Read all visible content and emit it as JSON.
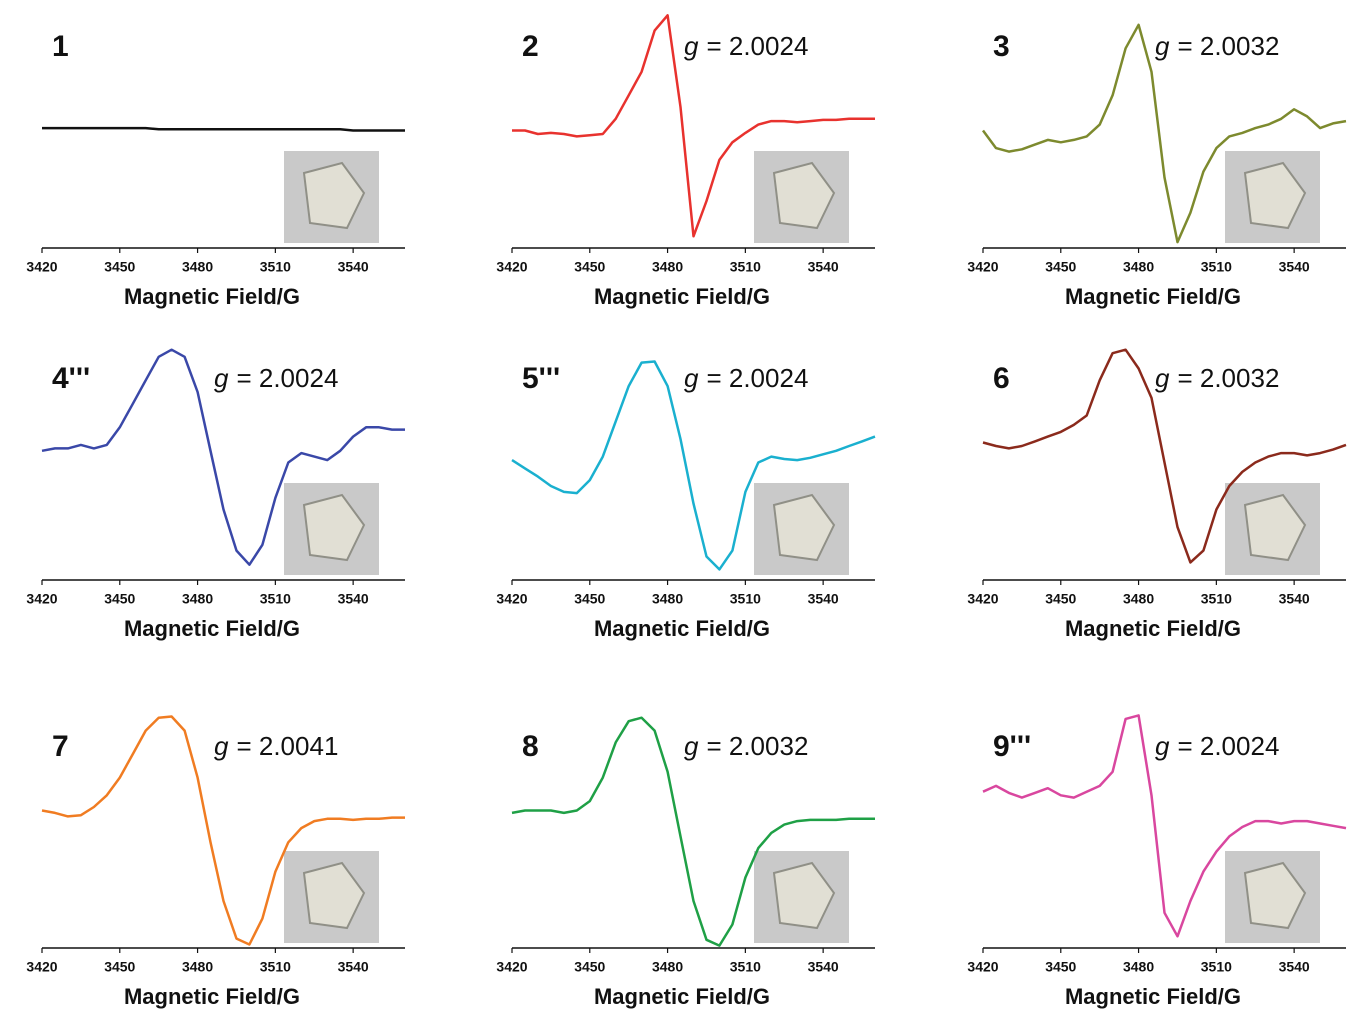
{
  "chart_data": [
    {
      "type": "line",
      "label": "1",
      "annotation": null,
      "xlabel": "Magnetic Field/G",
      "color": "#111111",
      "x": [
        3420,
        3425,
        3430,
        3435,
        3440,
        3445,
        3450,
        3455,
        3460,
        3465,
        3470,
        3475,
        3480,
        3485,
        3490,
        3495,
        3500,
        3505,
        3510,
        3515,
        3520,
        3525,
        3530,
        3535,
        3540,
        3545,
        3550,
        3555,
        3560
      ],
      "values": [
        0.02,
        0.02,
        0.02,
        0.02,
        0.02,
        0.02,
        0.02,
        0.02,
        0.02,
        0.01,
        0.01,
        0.01,
        0.01,
        0.01,
        0.01,
        0.01,
        0.01,
        0.01,
        0.01,
        0.01,
        0.01,
        0.01,
        0.01,
        0.01,
        0.0,
        0.0,
        0.0,
        0.0,
        0.0
      ],
      "xlim": [
        3420,
        3560
      ],
      "xticks": [
        3420,
        3450,
        3480,
        3510,
        3540
      ],
      "ylim": [
        -1,
        1
      ]
    },
    {
      "type": "line",
      "label": "2",
      "annotation": {
        "symbol": "g",
        "value": "= 2.0024"
      },
      "xlabel": "Magnetic Field/G",
      "color": "#e8322e",
      "x": [
        3420,
        3425,
        3430,
        3435,
        3440,
        3445,
        3450,
        3455,
        3460,
        3465,
        3470,
        3475,
        3480,
        3485,
        3490,
        3495,
        3500,
        3505,
        3510,
        3515,
        3520,
        3525,
        3530,
        3535,
        3540,
        3545,
        3550,
        3555,
        3560
      ],
      "values": [
        0.0,
        0.0,
        -0.03,
        -0.02,
        -0.03,
        -0.05,
        -0.04,
        -0.03,
        0.1,
        0.3,
        0.5,
        0.85,
        0.98,
        0.2,
        -0.9,
        -0.6,
        -0.25,
        -0.1,
        -0.02,
        0.05,
        0.08,
        0.08,
        0.07,
        0.08,
        0.09,
        0.09,
        0.1,
        0.1,
        0.1
      ],
      "xlim": [
        3420,
        3560
      ],
      "xticks": [
        3420,
        3450,
        3480,
        3510,
        3540
      ],
      "ylim": [
        -1,
        1
      ]
    },
    {
      "type": "line",
      "label": "3",
      "annotation": {
        "symbol": "g",
        "value": "= 2.0032"
      },
      "xlabel": "Magnetic Field/G",
      "color": "#7d8a2e",
      "x": [
        3420,
        3425,
        3430,
        3435,
        3440,
        3445,
        3450,
        3455,
        3460,
        3465,
        3470,
        3475,
        3480,
        3485,
        3490,
        3495,
        3500,
        3505,
        3510,
        3515,
        3520,
        3525,
        3530,
        3535,
        3540,
        3545,
        3550,
        3555,
        3560
      ],
      "values": [
        0.0,
        -0.15,
        -0.18,
        -0.16,
        -0.12,
        -0.08,
        -0.1,
        -0.08,
        -0.05,
        0.05,
        0.3,
        0.7,
        0.9,
        0.5,
        -0.4,
        -0.95,
        -0.7,
        -0.35,
        -0.15,
        -0.05,
        -0.02,
        0.02,
        0.05,
        0.1,
        0.18,
        0.12,
        0.02,
        0.06,
        0.08
      ],
      "xlim": [
        3420,
        3560
      ],
      "xticks": [
        3420,
        3450,
        3480,
        3510,
        3540
      ],
      "ylim": [
        -1,
        1
      ]
    },
    {
      "type": "line",
      "label": "4'''",
      "annotation": {
        "symbol": "g",
        "value": "= 2.0024"
      },
      "xlabel": "Magnetic Field/G",
      "color": "#3a48a8",
      "x": [
        3420,
        3425,
        3430,
        3435,
        3440,
        3445,
        3450,
        3455,
        3460,
        3465,
        3470,
        3475,
        3480,
        3485,
        3490,
        3495,
        3500,
        3505,
        3510,
        3515,
        3520,
        3525,
        3530,
        3535,
        3540,
        3545,
        3550,
        3555,
        3560
      ],
      "values": [
        0.1,
        0.12,
        0.12,
        0.15,
        0.12,
        0.15,
        0.3,
        0.5,
        0.7,
        0.9,
        0.96,
        0.9,
        0.6,
        0.1,
        -0.4,
        -0.75,
        -0.87,
        -0.7,
        -0.3,
        0.0,
        0.08,
        0.05,
        0.02,
        0.1,
        0.22,
        0.3,
        0.3,
        0.28,
        0.28
      ],
      "xlim": [
        3420,
        3560
      ],
      "xticks": [
        3420,
        3450,
        3480,
        3510,
        3540
      ],
      "ylim": [
        -1,
        1
      ]
    },
    {
      "type": "line",
      "label": "5'''",
      "annotation": {
        "symbol": "g",
        "value": "= 2.0024"
      },
      "xlabel": "Magnetic Field/G",
      "color": "#1ab0cf",
      "x": [
        3420,
        3425,
        3430,
        3435,
        3440,
        3445,
        3450,
        3455,
        3460,
        3465,
        3470,
        3475,
        3480,
        3485,
        3490,
        3495,
        3500,
        3505,
        3510,
        3515,
        3520,
        3525,
        3530,
        3535,
        3540,
        3545,
        3550,
        3555,
        3560
      ],
      "values": [
        0.02,
        -0.05,
        -0.12,
        -0.2,
        -0.25,
        -0.26,
        -0.15,
        0.05,
        0.35,
        0.65,
        0.85,
        0.86,
        0.65,
        0.2,
        -0.35,
        -0.8,
        -0.91,
        -0.75,
        -0.25,
        0.0,
        0.05,
        0.03,
        0.02,
        0.04,
        0.07,
        0.1,
        0.14,
        0.18,
        0.22
      ],
      "xlim": [
        3420,
        3560
      ],
      "xticks": [
        3420,
        3450,
        3480,
        3510,
        3540
      ],
      "ylim": [
        -1,
        1
      ]
    },
    {
      "type": "line",
      "label": "6",
      "annotation": {
        "symbol": "g",
        "value": "= 2.0032"
      },
      "xlabel": "Magnetic Field/G",
      "color": "#8b2a1c",
      "x": [
        3420,
        3425,
        3430,
        3435,
        3440,
        3445,
        3450,
        3455,
        3460,
        3465,
        3470,
        3475,
        3480,
        3485,
        3490,
        3495,
        3500,
        3505,
        3510,
        3515,
        3520,
        3525,
        3530,
        3535,
        3540,
        3545,
        3550,
        3555,
        3560
      ],
      "values": [
        0.17,
        0.14,
        0.12,
        0.14,
        0.18,
        0.22,
        0.26,
        0.32,
        0.4,
        0.7,
        0.93,
        0.96,
        0.8,
        0.55,
        0.0,
        -0.55,
        -0.85,
        -0.75,
        -0.4,
        -0.2,
        -0.08,
        0.0,
        0.05,
        0.08,
        0.08,
        0.06,
        0.08,
        0.11,
        0.15
      ],
      "xlim": [
        3420,
        3560
      ],
      "xticks": [
        3420,
        3450,
        3480,
        3510,
        3540
      ],
      "ylim": [
        -1,
        1
      ]
    },
    {
      "type": "line",
      "label": "7",
      "annotation": {
        "symbol": "g",
        "value": "= 2.0041"
      },
      "xlabel": "Magnetic Field/G",
      "color": "#f07c22",
      "x": [
        3420,
        3425,
        3430,
        3435,
        3440,
        3445,
        3450,
        3455,
        3460,
        3465,
        3470,
        3475,
        3480,
        3485,
        3490,
        3495,
        3500,
        3505,
        3510,
        3515,
        3520,
        3525,
        3530,
        3535,
        3540,
        3545,
        3550,
        3555,
        3560
      ],
      "values": [
        0.17,
        0.15,
        0.12,
        0.13,
        0.2,
        0.3,
        0.45,
        0.65,
        0.85,
        0.96,
        0.97,
        0.85,
        0.45,
        -0.1,
        -0.6,
        -0.92,
        -0.97,
        -0.75,
        -0.35,
        -0.1,
        0.02,
        0.08,
        0.1,
        0.1,
        0.09,
        0.1,
        0.1,
        0.11,
        0.11
      ],
      "xlim": [
        3420,
        3560
      ],
      "xticks": [
        3420,
        3450,
        3480,
        3510,
        3540
      ],
      "ylim": [
        -1,
        1
      ]
    },
    {
      "type": "line",
      "label": "8",
      "annotation": {
        "symbol": "g",
        "value": "= 2.0032"
      },
      "xlabel": "Magnetic Field/G",
      "color": "#1fa046",
      "x": [
        3420,
        3425,
        3430,
        3435,
        3440,
        3445,
        3450,
        3455,
        3460,
        3465,
        3470,
        3475,
        3480,
        3485,
        3490,
        3495,
        3500,
        3505,
        3510,
        3515,
        3520,
        3525,
        3530,
        3535,
        3540,
        3545,
        3550,
        3555,
        3560
      ],
      "values": [
        0.15,
        0.17,
        0.17,
        0.17,
        0.15,
        0.17,
        0.25,
        0.45,
        0.75,
        0.93,
        0.96,
        0.85,
        0.5,
        -0.05,
        -0.6,
        -0.93,
        -0.98,
        -0.8,
        -0.4,
        -0.15,
        -0.02,
        0.05,
        0.08,
        0.09,
        0.09,
        0.09,
        0.1,
        0.1,
        0.1
      ],
      "xlim": [
        3420,
        3560
      ],
      "xticks": [
        3420,
        3450,
        3480,
        3510,
        3540
      ],
      "ylim": [
        -1,
        1
      ]
    },
    {
      "type": "line",
      "label": "9'''",
      "annotation": {
        "symbol": "g",
        "value": "= 2.0024"
      },
      "xlabel": "Magnetic Field/G",
      "color": "#d9479f",
      "x": [
        3420,
        3425,
        3430,
        3435,
        3440,
        3445,
        3450,
        3455,
        3460,
        3465,
        3470,
        3475,
        3480,
        3485,
        3490,
        3495,
        3500,
        3505,
        3510,
        3515,
        3520,
        3525,
        3530,
        3535,
        3540,
        3545,
        3550,
        3555,
        3560
      ],
      "values": [
        0.33,
        0.38,
        0.32,
        0.28,
        0.32,
        0.36,
        0.3,
        0.28,
        0.33,
        0.38,
        0.5,
        0.95,
        0.98,
        0.3,
        -0.7,
        -0.9,
        -0.6,
        -0.35,
        -0.18,
        -0.05,
        0.03,
        0.08,
        0.08,
        0.06,
        0.08,
        0.08,
        0.06,
        0.04,
        0.02
      ],
      "xlim": [
        3420,
        3560
      ],
      "xticks": [
        3420,
        3450,
        3480,
        3510,
        3540
      ],
      "ylim": [
        -1,
        1
      ]
    }
  ]
}
